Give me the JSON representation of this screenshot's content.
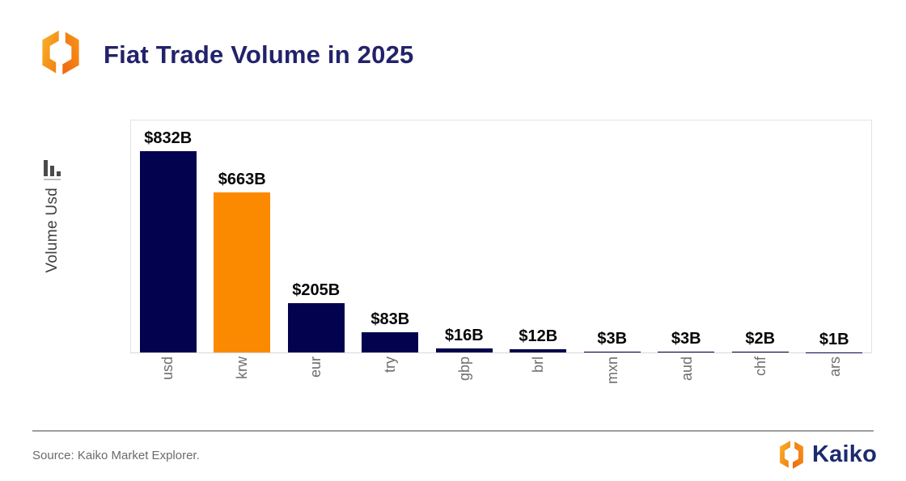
{
  "header": {
    "title": "Fiat Trade Volume in 2025"
  },
  "chart_data": {
    "type": "bar",
    "title": "Fiat Trade Volume in 2025",
    "xlabel": "",
    "ylabel": "Volume Usd",
    "unit": "USD billions",
    "categories": [
      "usd",
      "krw",
      "eur",
      "try",
      "gbp",
      "brl",
      "mxn",
      "aud",
      "chf",
      "ars"
    ],
    "values": [
      832,
      663,
      205,
      83,
      16,
      12,
      3,
      3,
      2,
      1
    ],
    "value_labels": [
      "$832B",
      "$663B",
      "$205B",
      "$83B",
      "$16B",
      "$12B",
      "$3B",
      "$3B",
      "$2B",
      "$1B"
    ],
    "bar_colors": [
      "#02024E",
      "#FC8A00",
      "#02024E",
      "#02024E",
      "#02024E",
      "#02024E",
      "#02024E",
      "#02024E",
      "#02024E",
      "#02024E"
    ],
    "highlight_category": "krw",
    "ylim": [
      0,
      966
    ],
    "grid": false,
    "legend": "none"
  },
  "footer": {
    "source": "Source: Kaiko Market Explorer.",
    "brand": "Kaiko"
  },
  "colors": {
    "navy_bar": "#02024E",
    "orange_bar": "#FC8A00",
    "title_navy": "#22226B",
    "brand_navy": "#1D2B6E",
    "tick_gray": "#6E6E6E",
    "logo_orange_light": "#F9B32A",
    "logo_orange_dark": "#F07C12"
  },
  "icons": {
    "header_logo": "kaiko-logo-icon",
    "y_axis": "bar-chart-icon",
    "footer_logo": "kaiko-logo-icon"
  }
}
